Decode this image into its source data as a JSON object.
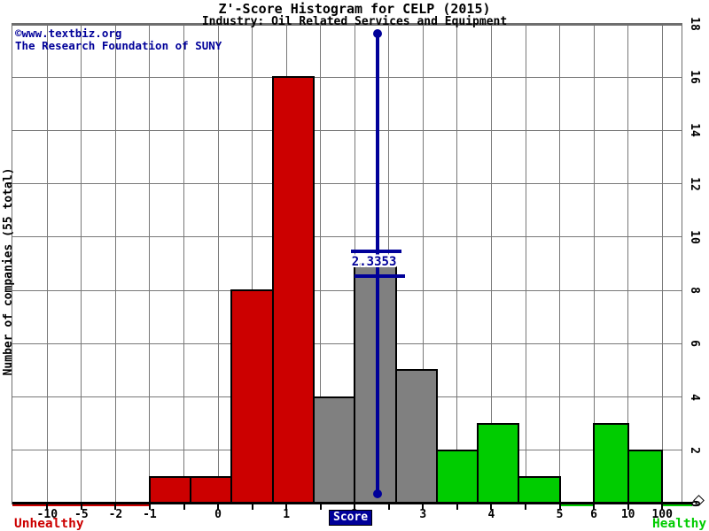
{
  "header": {
    "title": "Z'-Score Histogram for CELP (2015)",
    "subtitle": "Industry: Oil Related Services and Equipment"
  },
  "watermark": {
    "line1": "©www.textbiz.org",
    "line2": "The Research Foundation of SUNY"
  },
  "axes": {
    "y_title": "Number of companies (55 total)",
    "y_ticks": [
      0,
      2,
      4,
      6,
      8,
      10,
      12,
      14,
      16,
      18
    ],
    "y_max": 18,
    "x_title": "Score",
    "x_tick_labels": [
      "-10",
      "-5",
      "-2",
      "-1",
      "0",
      "1",
      "2",
      "3",
      "4",
      "5",
      "6",
      "10",
      "100"
    ]
  },
  "captions": {
    "left": "Unhealthy",
    "right": "Healthy"
  },
  "marker": {
    "label": "2.3353",
    "value": 2.3353
  },
  "chart_data": {
    "type": "bar",
    "title": "Z'-Score Histogram for CELP (2015)",
    "subtitle": "Industry: Oil Related Services and Equipment",
    "xlabel": "Score",
    "ylabel": "Number of companies (55 total)",
    "ylim": [
      0,
      18
    ],
    "y_tick_step": 2,
    "x_tick_labels": [
      "-10",
      "-5",
      "-2",
      "-1",
      "0",
      "1",
      "2",
      "3",
      "4",
      "5",
      "6",
      "10",
      "100"
    ],
    "grid": true,
    "legend_position": "none",
    "total_companies": 55,
    "company": "CELP",
    "year": "2015",
    "company_score_marker": 2.3353,
    "bins": [
      {
        "range": "[-1.0, -0.4)",
        "count": 1,
        "zone": "unhealthy"
      },
      {
        "range": "[-0.4, 0.2)",
        "count": 1,
        "zone": "unhealthy"
      },
      {
        "range": "[0.2, 0.8)",
        "count": 8,
        "zone": "unhealthy"
      },
      {
        "range": "[0.8, 1.4)",
        "count": 16,
        "zone": "unhealthy"
      },
      {
        "range": "[1.4, 2.0)",
        "count": 4,
        "zone": "intermediate"
      },
      {
        "range": "[2.0, 2.6)",
        "count": 9,
        "zone": "intermediate"
      },
      {
        "range": "[2.6, 3.2)",
        "count": 5,
        "zone": "intermediate"
      },
      {
        "range": "[3.2, 3.8)",
        "count": 2,
        "zone": "healthy"
      },
      {
        "range": "[3.8, 4.4)",
        "count": 3,
        "zone": "healthy"
      },
      {
        "range": "[4.4, 5.0)",
        "count": 1,
        "zone": "healthy"
      },
      {
        "range": "[5, 6)",
        "count": 0,
        "zone": "healthy"
      },
      {
        "range": "[6, 10)",
        "count": 3,
        "zone": "healthy"
      },
      {
        "range": "[10, 100)",
        "count": 2,
        "zone": "healthy"
      }
    ]
  },
  "colors": {
    "unhealthy": "#cc0000",
    "intermediate": "#808080",
    "healthy": "#00cc00",
    "marker": "#000099",
    "grid": "#787878",
    "border": "#6e6e6e",
    "axis": "#000000"
  }
}
